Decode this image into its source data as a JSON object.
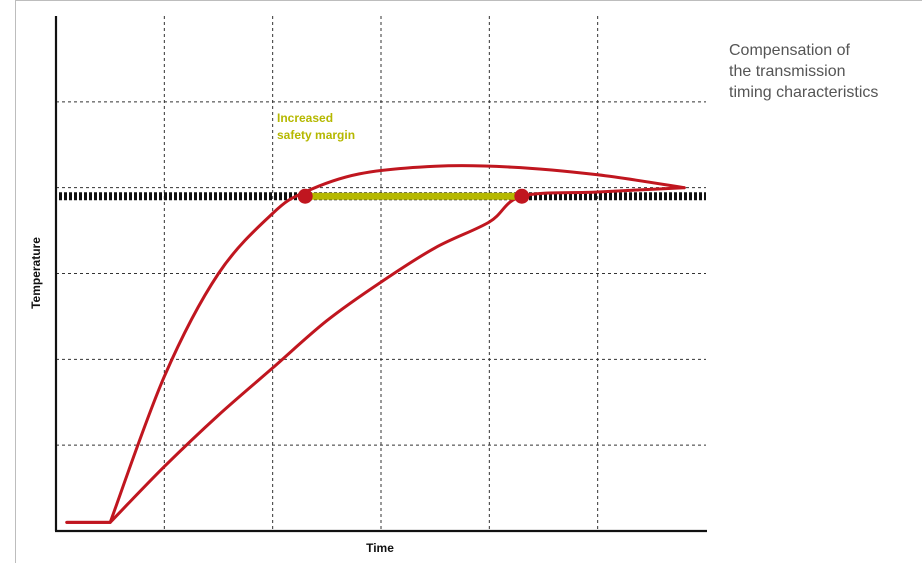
{
  "caption": "Compensation of\nthe transmission\ntiming characteristics",
  "chart_data": {
    "type": "line",
    "title": "",
    "xlabel": "Time",
    "ylabel": "Temperature",
    "x_ticks_labeled": false,
    "y_ticks_labeled": false,
    "grid": true,
    "xlim": [
      0,
      6
    ],
    "ylim": [
      0,
      6
    ],
    "threshold": {
      "y": 3.9,
      "style": "thick-dotted",
      "color": "#111111"
    },
    "series": [
      {
        "curve": "upper",
        "color": "#c0161f",
        "x": [
          0.1,
          0.5,
          1.0,
          1.5,
          2.0,
          2.3,
          2.8,
          3.5,
          4.2,
          5.0,
          5.8
        ],
        "y": [
          0.1,
          0.1,
          1.8,
          3.0,
          3.7,
          3.95,
          4.16,
          4.25,
          4.24,
          4.15,
          4.0
        ]
      },
      {
        "curve": "lower",
        "color": "#c0161f",
        "x": [
          0.1,
          0.5,
          1.0,
          1.5,
          2.0,
          2.5,
          3.0,
          3.5,
          4.0,
          4.3,
          5.0,
          5.8
        ],
        "y": [
          0.1,
          0.1,
          0.75,
          1.35,
          1.9,
          2.45,
          2.9,
          3.3,
          3.6,
          3.9,
          3.95,
          4.0
        ]
      }
    ],
    "markers": [
      {
        "x": 2.3,
        "y": 3.9,
        "color": "#c0161f"
      },
      {
        "x": 4.3,
        "y": 3.9,
        "color": "#c0161f"
      }
    ],
    "margin_band": {
      "x_start": 2.3,
      "x_end": 4.3,
      "y": 3.9,
      "color": "#b5b800"
    },
    "annotation": {
      "text_line1": "Increased",
      "text_line2": "safety margin",
      "color": "#b5b800"
    }
  }
}
